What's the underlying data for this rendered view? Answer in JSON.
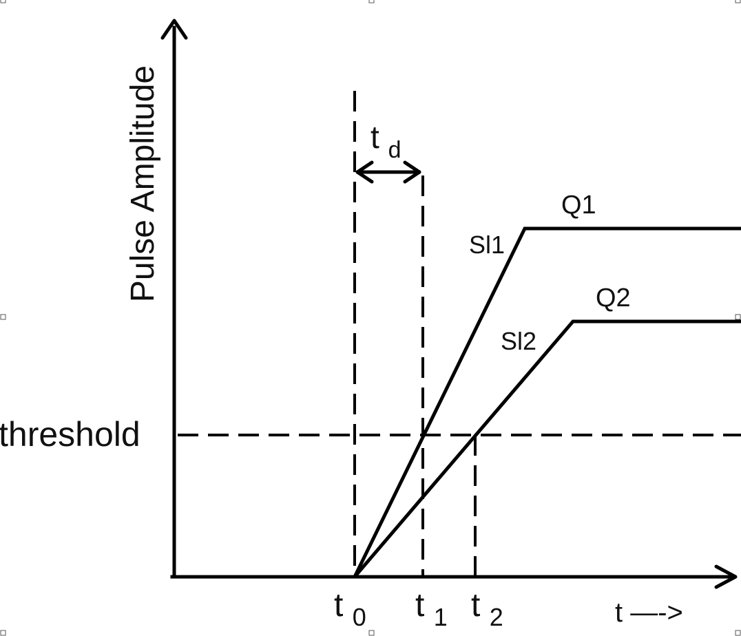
{
  "diagram": {
    "y_axis_label": "Pulse Amplitude",
    "x_axis_label": "t —->",
    "threshold_label": "threshold",
    "delay_label": "t",
    "delay_sub": "d",
    "t0_label": "t",
    "t0_sub": "0",
    "t1_label": "t",
    "t1_sub": "1",
    "t2_label": "t",
    "t2_sub": "2",
    "q1_label": "Q1",
    "q2_label": "Q2",
    "sl1_label": "Sl1",
    "sl2_label": "Sl2"
  }
}
